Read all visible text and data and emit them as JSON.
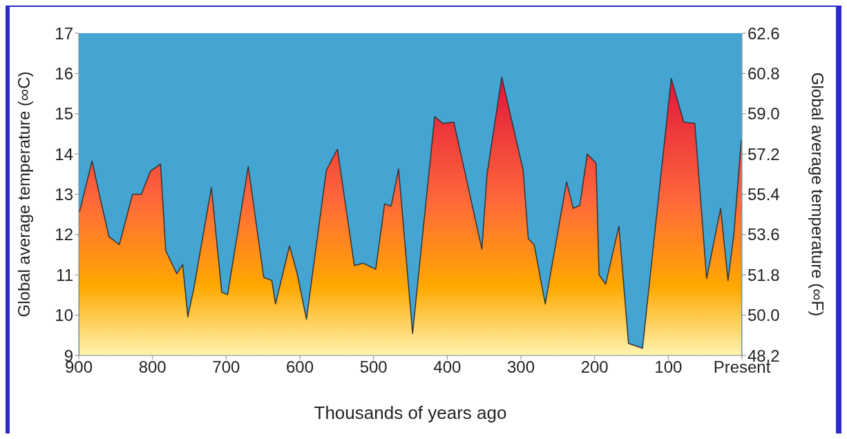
{
  "chart_data": {
    "type": "area",
    "xlabel": "Thousands of years ago",
    "ylabel": "Global average temperature (∞C)",
    "y2label": "Global average temperature (∞F)",
    "x": [
      899,
      882,
      871,
      859,
      845,
      827,
      815,
      803,
      789,
      782,
      767,
      759,
      752,
      744,
      720,
      706,
      698,
      670,
      649,
      638,
      633,
      614,
      604,
      591,
      564,
      549,
      526,
      514,
      497,
      485,
      476,
      466,
      447,
      417,
      406,
      391,
      353,
      346,
      326,
      297,
      290,
      282,
      267,
      238,
      229,
      220,
      210,
      198,
      194,
      185,
      167,
      154,
      135,
      96,
      79,
      64,
      48,
      29,
      19,
      11,
      1
    ],
    "series": [
      {
        "values": [
          12.56,
          13.83,
          12.91,
          11.95,
          11.75,
          13.0,
          13.0,
          13.57,
          13.75,
          11.6,
          11.03,
          11.26,
          9.96,
          10.65,
          13.17,
          10.57,
          10.51,
          13.69,
          10.94,
          10.86,
          10.28,
          11.72,
          11.06,
          9.9,
          13.6,
          14.12,
          11.23,
          11.29,
          11.14,
          12.76,
          12.71,
          13.63,
          9.55,
          14.93,
          14.76,
          14.79,
          11.64,
          13.49,
          15.91,
          13.6,
          11.9,
          11.75,
          10.28,
          13.31,
          12.65,
          12.73,
          14.0,
          13.77,
          11.0,
          10.77,
          12.21,
          9.3,
          9.18,
          15.88,
          14.79,
          14.76,
          10.91,
          12.65,
          10.86,
          12.01,
          14.35
        ]
      }
    ],
    "xlim": [
      900,
      0
    ],
    "xticks": [
      900,
      800,
      700,
      600,
      500,
      400,
      300,
      200,
      100,
      {
        "value": 0,
        "label": "Present"
      }
    ],
    "ylim": [
      9,
      17
    ],
    "yticks": [
      9,
      10,
      11,
      12,
      13,
      14,
      15,
      16,
      17
    ],
    "y2lim": [
      48.2,
      62.6
    ],
    "y2ticks": [
      {
        "value": 48.2,
        "label": "48.2"
      },
      {
        "value": 50.0,
        "label": "50.0"
      },
      {
        "value": 51.8,
        "label": "51.8"
      },
      {
        "value": 53.6,
        "label": "53.6"
      },
      {
        "value": 55.4,
        "label": "55.4"
      },
      {
        "value": 57.2,
        "label": "57.2"
      },
      {
        "value": 59.0,
        "label": "59.0"
      },
      {
        "value": 60.8,
        "label": "60.8"
      },
      {
        "value": 62.6,
        "label": "62.6"
      }
    ],
    "grid": false
  }
}
